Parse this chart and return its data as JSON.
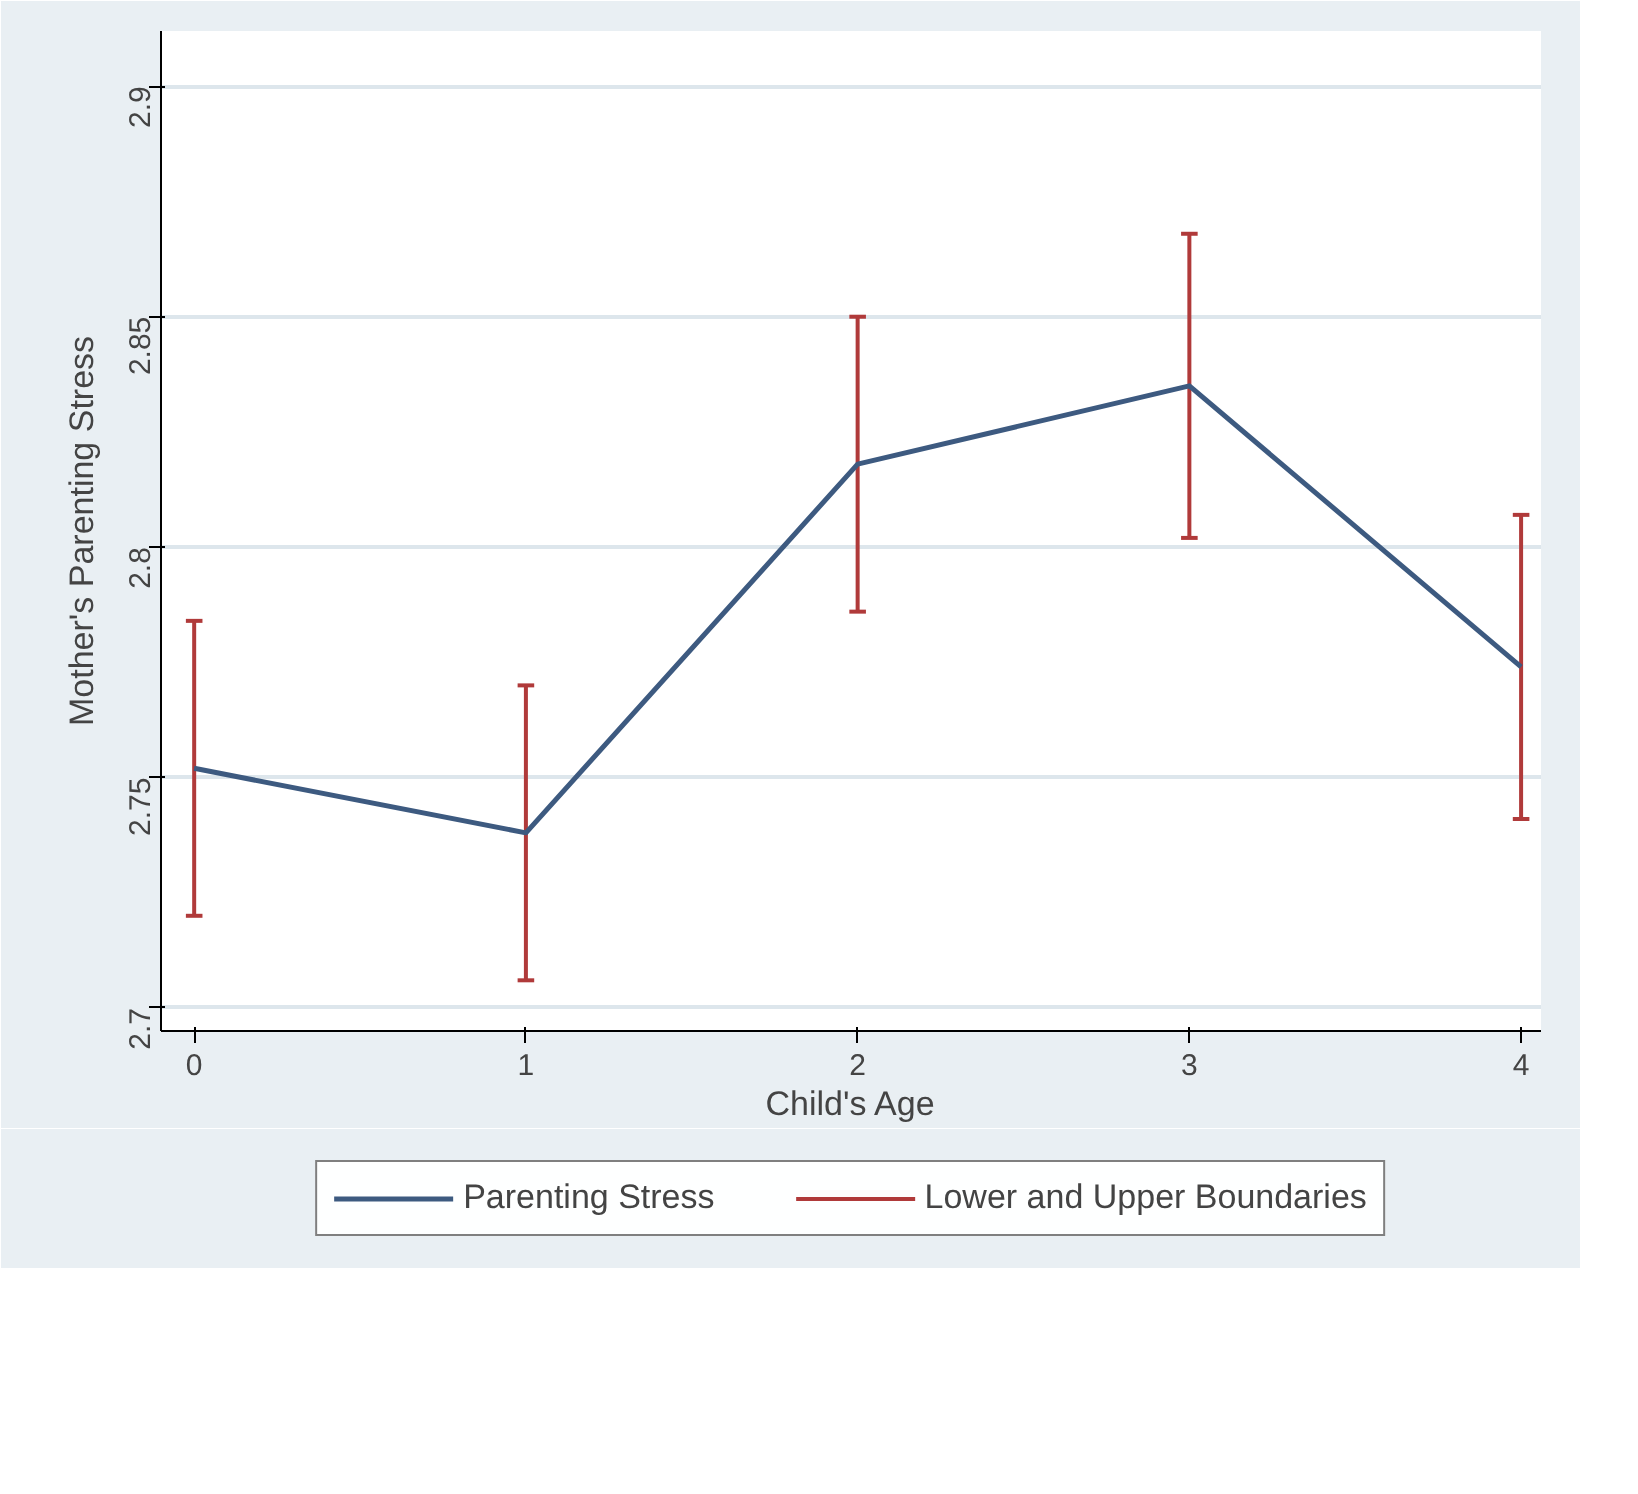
{
  "chart_data": {
    "type": "line",
    "xlabel": "Child's Age",
    "ylabel": "Mother's Parenting Stress",
    "x": [
      0,
      1,
      2,
      3,
      4
    ],
    "xlim": [
      -0.1,
      4.06
    ],
    "xticks": [
      0,
      1,
      2,
      3,
      4
    ],
    "ylim": [
      2.695,
      2.912
    ],
    "yticks": [
      2.7,
      2.75,
      2.8,
      2.85,
      2.9
    ],
    "series": [
      {
        "name": "Parenting Stress",
        "color": "#3d5a80",
        "values": [
          2.752,
          2.738,
          2.818,
          2.835,
          2.774
        ],
        "errors": [
          0.032,
          0.032,
          0.032,
          0.033,
          0.033
        ]
      }
    ],
    "annotations": [
      "Lower and Upper Boundaries"
    ],
    "grid": "y",
    "legend": "bottom",
    "marker": "none",
    "line_style": "solid"
  }
}
